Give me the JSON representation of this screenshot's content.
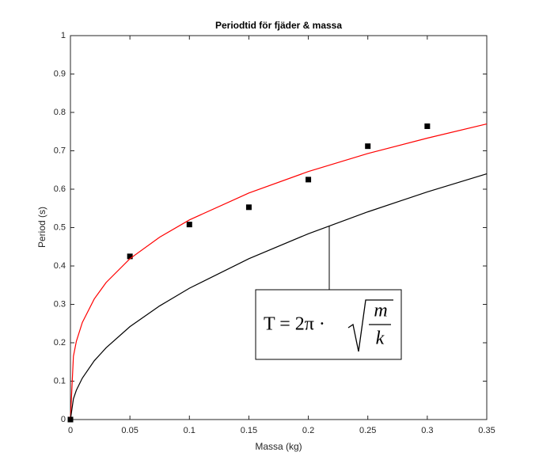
{
  "chart_data": {
    "type": "line",
    "title": "Periodtid för fjäder & massa",
    "x_label": "Massa (kg)",
    "y_label": "Period (s)",
    "xlim": [
      0,
      0.35
    ],
    "ylim": [
      0,
      1
    ],
    "xticks": [
      0,
      0.05,
      0.1,
      0.15,
      0.2,
      0.25,
      0.3,
      0.35
    ],
    "yticks": [
      0,
      0.1,
      0.2,
      0.3,
      0.4,
      0.5,
      0.6,
      0.7,
      0.8,
      0.9,
      1
    ],
    "grid": false,
    "series": [
      {
        "mode": "markers",
        "color": "#000000",
        "x": [
          0,
          0.05,
          0.1,
          0.15,
          0.2,
          0.25,
          0.3
        ],
        "values": [
          0,
          0.425,
          0.508,
          0.553,
          0.625,
          0.712,
          0.764
        ]
      },
      {
        "mode": "line",
        "color": "#ff0000",
        "x": [
          0,
          0.0025,
          0.005,
          0.01,
          0.02,
          0.03,
          0.05,
          0.075,
          0.1,
          0.15,
          0.2,
          0.25,
          0.3,
          0.35
        ],
        "values": [
          0,
          0.165,
          0.204,
          0.253,
          0.314,
          0.357,
          0.419,
          0.475,
          0.52,
          0.59,
          0.646,
          0.693,
          0.733,
          0.77
        ]
      },
      {
        "mode": "line",
        "color": "#000000",
        "x": [
          0,
          0.0025,
          0.005,
          0.01,
          0.02,
          0.03,
          0.05,
          0.075,
          0.1,
          0.15,
          0.2,
          0.25,
          0.3,
          0.35
        ],
        "values": [
          0,
          0.054,
          0.0765,
          0.108,
          0.153,
          0.187,
          0.242,
          0.296,
          0.342,
          0.419,
          0.484,
          0.541,
          0.593,
          0.64
        ]
      }
    ],
    "annotation": {
      "lhs": "T = 2π ·",
      "numerator": "m",
      "denominator": "k"
    }
  }
}
